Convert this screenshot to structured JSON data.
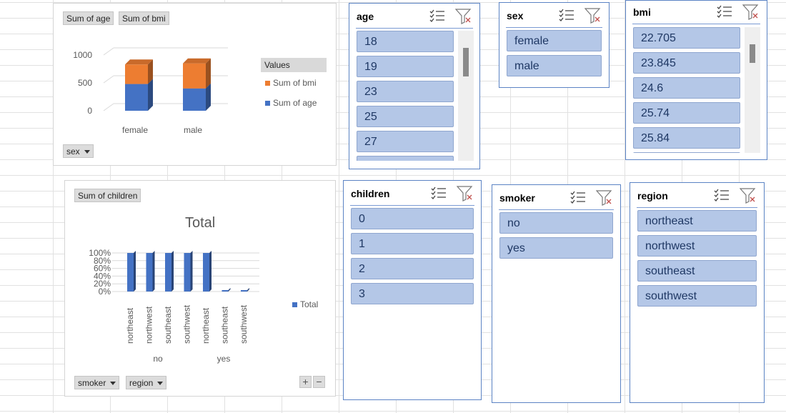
{
  "pivot_chart_1": {
    "field_buttons": [
      "Sum of age",
      "Sum of bmi"
    ],
    "axis_button": "sex",
    "legend": {
      "title": "Values",
      "items": [
        {
          "label": "Sum of bmi",
          "color": "#ed7d31"
        },
        {
          "label": "Sum of age",
          "color": "#4472c4"
        }
      ]
    }
  },
  "pivot_chart_2": {
    "value_button": "Sum of children",
    "title": "Total",
    "axis_buttons": [
      "smoker",
      "region"
    ],
    "legend_label": "Total",
    "legend_color": "#4472c4",
    "group_labels": [
      "no",
      "yes"
    ],
    "zoom_plus": "+",
    "zoom_minus": "−"
  },
  "chart_data": [
    {
      "type": "bar",
      "stacked": true,
      "categories": [
        "female",
        "male"
      ],
      "series": [
        {
          "name": "Sum of age",
          "values": [
            480,
            400
          ],
          "color": "#4472c4"
        },
        {
          "name": "Sum of bmi",
          "values": [
            350,
            450
          ],
          "color": "#ed7d31"
        }
      ],
      "ylim": [
        0,
        1000
      ],
      "yticks": [
        "0",
        "500",
        "1000"
      ],
      "legend": "right"
    },
    {
      "type": "bar",
      "title": "Total",
      "categories": [
        "northeast",
        "northwest",
        "southeast",
        "southwest",
        "northeast",
        "southeast",
        "southwest"
      ],
      "groups": [
        {
          "label": "no",
          "count": 4
        },
        {
          "label": "yes",
          "count": 3
        }
      ],
      "series": [
        {
          "name": "Total",
          "values": [
            100,
            100,
            100,
            100,
            100,
            0,
            0
          ],
          "color": "#4472c4"
        }
      ],
      "ylim": [
        0,
        100
      ],
      "yticks": [
        "0%",
        "20%",
        "40%",
        "60%",
        "80%",
        "100%"
      ],
      "legend": "right"
    }
  ],
  "slicers": {
    "age": {
      "title": "age",
      "items": [
        "18",
        "19",
        "23",
        "25",
        "27"
      ]
    },
    "sex": {
      "title": "sex",
      "items": [
        "female",
        "male"
      ]
    },
    "bmi": {
      "title": "bmi",
      "items": [
        "22.705",
        "23.845",
        "24.6",
        "25.74",
        "25.84"
      ]
    },
    "children": {
      "title": "children",
      "items": [
        "0",
        "1",
        "2",
        "3"
      ]
    },
    "smoker": {
      "title": "smoker",
      "items": [
        "no",
        "yes"
      ]
    },
    "region": {
      "title": "region",
      "items": [
        "northeast",
        "northwest",
        "southeast",
        "southwest"
      ]
    }
  },
  "icons": {
    "multi_select": "multi-select-icon",
    "clear_filter": "clear-filter-icon"
  }
}
